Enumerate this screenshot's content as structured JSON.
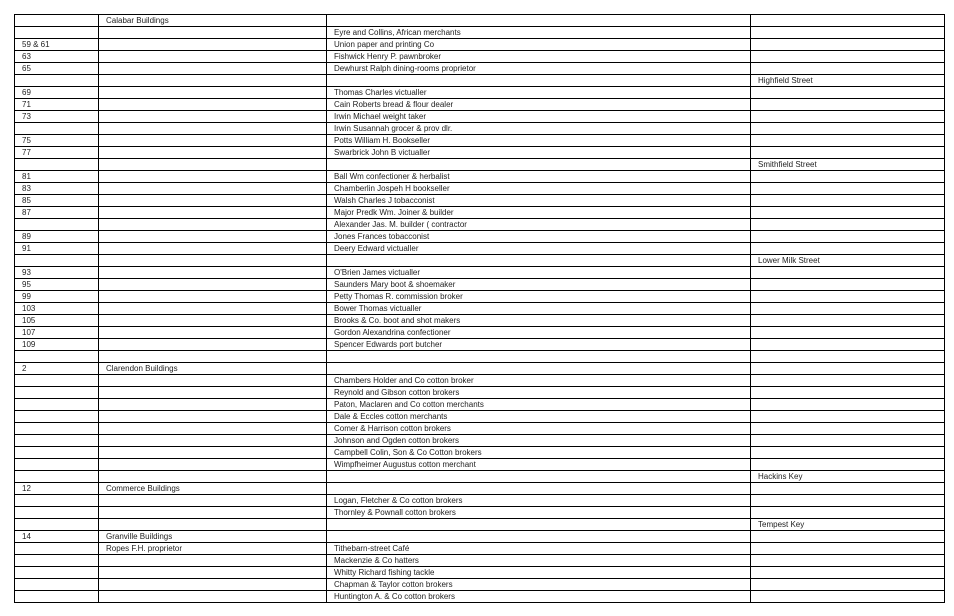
{
  "rows": [
    [
      "",
      "Calabar Buildings",
      "",
      ""
    ],
    [
      "",
      "",
      "Eyre and Collins, African merchants",
      ""
    ],
    [
      "59 & 61",
      "",
      "Union paper and printing Co",
      ""
    ],
    [
      "63",
      "",
      "Fishwick Henry P. pawnbroker",
      ""
    ],
    [
      "65",
      "",
      "Dewhurst Ralph dining-rooms proprietor",
      ""
    ],
    [
      "",
      "",
      "",
      "Highfield Street"
    ],
    [
      "69",
      "",
      "Thomas Charles victualler",
      ""
    ],
    [
      "71",
      "",
      "Cain Roberts bread & flour dealer",
      ""
    ],
    [
      "73",
      "",
      "Irwin Michael weight taker",
      ""
    ],
    [
      "",
      "",
      "Irwin Susannah grocer & prov dlr.",
      ""
    ],
    [
      "75",
      "",
      "Potts William H. Bookseller",
      ""
    ],
    [
      "77",
      "",
      "Swarbrick John B victualler",
      ""
    ],
    [
      "",
      "",
      "",
      "Smithfield Street"
    ],
    [
      "81",
      "",
      "Ball Wm confectioner & herbalist",
      ""
    ],
    [
      "83",
      "",
      "Chamberlin Jospeh H bookseller",
      ""
    ],
    [
      "85",
      "",
      "Walsh Charles J tobacconist",
      ""
    ],
    [
      "87",
      "",
      "Major Predk Wm. Joiner & builder",
      ""
    ],
    [
      "",
      "",
      "Alexander Jas. M. builder ( contractor",
      ""
    ],
    [
      "89",
      "",
      "Jones Frances tobacconist",
      ""
    ],
    [
      "91",
      "",
      "Deery Edward victualler",
      ""
    ],
    [
      "",
      "",
      "",
      "Lower Milk Street"
    ],
    [
      "93",
      "",
      "O'Brien James victualler",
      ""
    ],
    [
      "95",
      "",
      "Saunders Mary boot & shoemaker",
      ""
    ],
    [
      "99",
      "",
      "Petty Thomas R. commission broker",
      ""
    ],
    [
      "103",
      "",
      "Bower Thomas victualler",
      ""
    ],
    [
      "105",
      "",
      "Brooks & Co. boot and shot makers",
      ""
    ],
    [
      "107",
      "",
      "Gordon Alexandrina confectioner",
      ""
    ],
    [
      "109",
      "",
      "Spencer Edwards port butcher",
      ""
    ],
    [
      "",
      "",
      "",
      ""
    ],
    [
      "2",
      "Clarendon Buildings",
      "",
      ""
    ],
    [
      "",
      "",
      "Chambers Holder and Co cotton broker",
      ""
    ],
    [
      "",
      "",
      "Reynold and Gibson cotton brokers",
      ""
    ],
    [
      "",
      "",
      "Paton, Maclaren and Co cotton merchants",
      ""
    ],
    [
      "",
      "",
      "Dale & Eccles cotton merchants",
      ""
    ],
    [
      "",
      "",
      "Comer & Harrison cotton brokers",
      ""
    ],
    [
      "",
      "",
      "Johnson and Ogden cotton brokers",
      ""
    ],
    [
      "",
      "",
      "Campbell Colin, Son & Co Cotton brokers",
      ""
    ],
    [
      "",
      "",
      "Wimpfheimer Augustus cotton merchant",
      ""
    ],
    [
      "",
      "",
      "",
      "Hackins Key"
    ],
    [
      "12",
      "Commerce Buildings",
      "",
      ""
    ],
    [
      "",
      "",
      "Logan, Fletcher & Co cotton brokers",
      ""
    ],
    [
      "",
      "",
      "Thornley & Pownall cotton brokers",
      ""
    ],
    [
      "",
      "",
      "",
      "Tempest Key"
    ],
    [
      "14",
      "Granville Buildings",
      "",
      ""
    ],
    [
      "",
      "Ropes F.H. proprietor",
      "Tithebarn-street Café",
      ""
    ],
    [
      "",
      "",
      "Mackenzie & Co hatters",
      ""
    ],
    [
      "",
      "",
      "Whitty Richard fishing tackle",
      ""
    ],
    [
      "",
      "",
      "Chapman & Taylor cotton brokers",
      ""
    ],
    [
      "",
      "",
      "Huntington A. & Co cotton brokers",
      ""
    ]
  ]
}
